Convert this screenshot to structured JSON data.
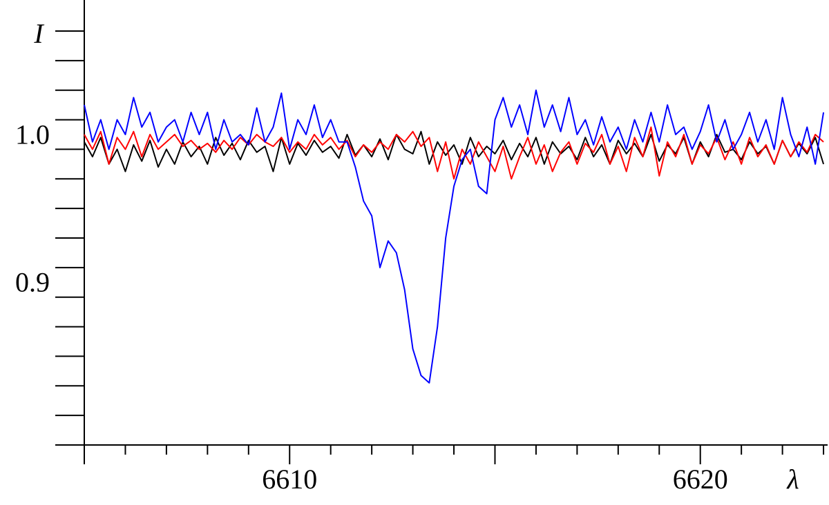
{
  "chart_data": {
    "type": "line",
    "ylabel": "I",
    "xlabel": "λ",
    "x": [
      6605,
      6605.2,
      6605.4,
      6605.6,
      6605.8,
      6606,
      6606.2,
      6606.4,
      6606.6,
      6606.8,
      6607,
      6607.2,
      6607.4,
      6607.6,
      6607.8,
      6608,
      6608.2,
      6608.4,
      6608.6,
      6608.8,
      6609,
      6609.2,
      6609.4,
      6609.6,
      6609.8,
      6610,
      6610.2,
      6610.4,
      6610.6,
      6610.8,
      6611,
      6611.2,
      6611.4,
      6611.6,
      6611.8,
      6612,
      6612.2,
      6612.4,
      6612.6,
      6612.8,
      6613,
      6613.2,
      6613.4,
      6613.6,
      6613.8,
      6614,
      6614.2,
      6614.4,
      6614.6,
      6614.8,
      6615,
      6615.2,
      6615.4,
      6615.6,
      6615.8,
      6616,
      6616.2,
      6616.4,
      6616.6,
      6616.8,
      6617,
      6617.2,
      6617.4,
      6617.6,
      6617.8,
      6618,
      6618.2,
      6618.4,
      6618.6,
      6618.8,
      6619,
      6619.2,
      6619.4,
      6619.6,
      6619.8,
      6620,
      6620.2,
      6620.4,
      6620.6,
      6620.8,
      6621,
      6621.2,
      6621.4,
      6621.6,
      6621.8,
      6622,
      6622.2,
      6622.4,
      6622.6,
      6622.8,
      6623
    ],
    "series": [
      {
        "color": "#000000",
        "values": [
          1.005,
          0.995,
          1.008,
          0.99,
          1.0,
          0.985,
          1.003,
          0.992,
          1.006,
          0.988,
          1.0,
          0.99,
          1.005,
          0.995,
          1.002,
          0.99,
          1.008,
          0.996,
          1.004,
          0.993,
          1.006,
          0.998,
          1.002,
          0.985,
          1.008,
          0.99,
          1.004,
          0.996,
          1.006,
          0.998,
          1.002,
          0.994,
          1.01,
          0.996,
          1.003,
          0.995,
          1.007,
          0.993,
          1.01,
          1.0,
          0.997,
          1.012,
          0.99,
          1.005,
          0.996,
          1.003,
          0.99,
          1.008,
          0.995,
          1.002,
          0.997,
          1.006,
          0.993,
          1.004,
          0.995,
          1.008,
          0.99,
          1.005,
          0.997,
          1.002,
          0.993,
          1.008,
          0.995,
          1.003,
          0.99,
          1.006,
          0.997,
          1.004,
          0.995,
          1.01,
          0.992,
          1.003,
          0.997,
          1.008,
          0.99,
          1.005,
          0.995,
          1.01,
          0.998,
          1.0,
          0.993,
          1.005,
          0.997,
          1.002,
          0.99,
          1.006,
          0.995,
          1.004,
          0.997,
          1.008,
          0.99
        ]
      },
      {
        "color": "#ff0000",
        "values": [
          1.01,
          1.0,
          1.012,
          0.99,
          1.008,
          1.0,
          1.012,
          0.995,
          1.01,
          1.0,
          1.005,
          1.01,
          1.002,
          1.006,
          1.0,
          1.004,
          0.998,
          1.006,
          1.0,
          1.008,
          1.003,
          1.01,
          1.005,
          1.002,
          1.008,
          0.998,
          1.005,
          1.0,
          1.01,
          1.003,
          1.008,
          1.0,
          1.006,
          0.995,
          1.003,
          0.998,
          1.005,
          1.0,
          1.01,
          1.005,
          1.012,
          1.002,
          1.008,
          0.985,
          1.005,
          0.98,
          1.0,
          0.99,
          1.005,
          0.995,
          0.985,
          1.002,
          0.98,
          0.995,
          1.008,
          0.99,
          1.003,
          0.985,
          0.998,
          1.005,
          0.99,
          1.004,
          0.998,
          1.01,
          0.99,
          1.002,
          0.985,
          1.008,
          0.995,
          1.015,
          0.982,
          1.005,
          0.995,
          1.01,
          0.99,
          1.003,
          0.997,
          1.008,
          0.993,
          1.005,
          0.99,
          1.008,
          0.995,
          1.003,
          0.99,
          1.006,
          0.995,
          1.005,
          0.998,
          1.01,
          1.005
        ]
      },
      {
        "color": "#0000ff",
        "values": [
          1.03,
          1.005,
          1.02,
          1.0,
          1.02,
          1.01,
          1.035,
          1.015,
          1.025,
          1.005,
          1.015,
          1.02,
          1.005,
          1.025,
          1.01,
          1.025,
          1.0,
          1.02,
          1.005,
          1.01,
          1.003,
          1.028,
          1.005,
          1.015,
          1.038,
          1.0,
          1.02,
          1.01,
          1.03,
          1.008,
          1.02,
          1.005,
          1.005,
          0.988,
          0.965,
          0.955,
          0.92,
          0.938,
          0.93,
          0.905,
          0.865,
          0.847,
          0.842,
          0.88,
          0.94,
          0.975,
          0.993,
          1.0,
          0.975,
          0.97,
          1.02,
          1.035,
          1.015,
          1.03,
          1.01,
          1.04,
          1.015,
          1.03,
          1.012,
          1.035,
          1.01,
          1.02,
          1.003,
          1.022,
          1.005,
          1.015,
          1.0,
          1.02,
          1.005,
          1.025,
          1.005,
          1.03,
          1.01,
          1.015,
          1.0,
          1.012,
          1.03,
          1.005,
          1.02,
          1.0,
          1.01,
          1.025,
          1.005,
          1.02,
          1.0,
          1.035,
          1.01,
          0.995,
          1.015,
          0.99,
          1.025
        ]
      }
    ],
    "xlim": [
      6605,
      6623.1
    ],
    "ylim": [
      0.8,
      1.101
    ],
    "xticks": [
      6610,
      6620
    ],
    "xminor_ticks": [
      6605,
      6606,
      6607,
      6608,
      6609,
      6610,
      6611,
      6612,
      6613,
      6614,
      6615,
      6616,
      6617,
      6618,
      6619,
      6620,
      6621,
      6622,
      6623
    ],
    "yticks": [
      {
        "value": 0.9,
        "label": "0.9"
      },
      {
        "value": 1.0,
        "label": "1.0"
      }
    ],
    "yminor_ticks": [
      0.82,
      0.84,
      0.86,
      0.88,
      0.9,
      0.92,
      0.94,
      0.96,
      0.98,
      1.0,
      1.02,
      1.04,
      1.06,
      1.08
    ]
  }
}
